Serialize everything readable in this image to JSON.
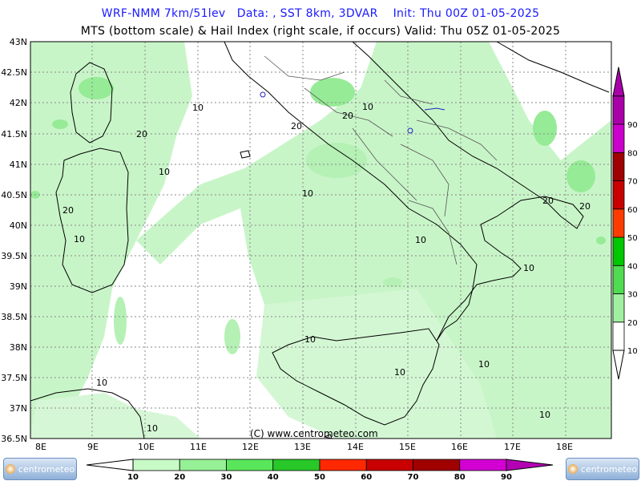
{
  "header": {
    "line1": "WRF-NMM 7km/51lev   Data: , SST 8km, 3DVAR    Init: Thu 00Z 01-05-2025",
    "line2": "MTS (bottom scale) & Hail Index (right scale, if occurs) Valid: Thu 05Z 01-05-2025"
  },
  "map": {
    "lat_labels": [
      "43N",
      "42.5N",
      "42N",
      "41.5N",
      "41N",
      "40.5N",
      "40N",
      "39.5N",
      "39N",
      "38.5N",
      "38N",
      "37.5N",
      "37N",
      "36.5N"
    ],
    "lon_labels": [
      "8E",
      "9E",
      "10E",
      "11E",
      "12E",
      "13E",
      "14E",
      "15E",
      "16E",
      "17E",
      "18E"
    ],
    "contour_labels": [
      "10",
      "20",
      "10",
      "20",
      "20",
      "10",
      "20",
      "10",
      "10",
      "10",
      "20",
      "20",
      "10",
      "10",
      "10",
      "10",
      "10",
      "10",
      "10",
      "10"
    ],
    "copyright": "(C) www.centrometeo.com"
  },
  "bottom_scale": {
    "ticks": [
      "10",
      "20",
      "30",
      "40",
      "50",
      "60",
      "70",
      "80",
      "90"
    ],
    "colors": [
      "#c8fac8",
      "#96f096",
      "#5ae65a",
      "#28c828",
      "#ff2800",
      "#c80000",
      "#a00000",
      "#d200d2",
      "#b400b4"
    ]
  },
  "right_scale": {
    "ticks": [
      "10",
      "20",
      "30",
      "40",
      "50",
      "60",
      "70",
      "80",
      "90"
    ],
    "colors": [
      "#ffffff",
      "#a0f0a0",
      "#50dc50",
      "#00c800",
      "#ff3c00",
      "#c80000",
      "#a00000",
      "#cc00cc",
      "#aa00aa"
    ]
  },
  "logos": {
    "brand": "centrometeo"
  }
}
